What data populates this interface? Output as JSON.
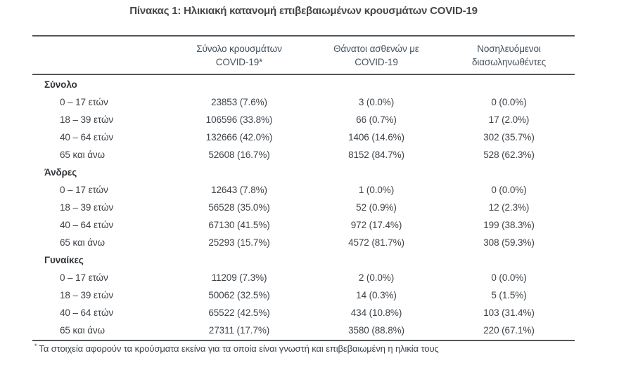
{
  "title": "Πίνακας 1: Ηλικιακή κατανομή επιβεβαιωμένων κρουσμάτων COVID-19",
  "table": {
    "columns": [
      {
        "line1": "Σύνολο κρουσμάτων",
        "line2": "COVID-19*"
      },
      {
        "line1": "Θάνατοι ασθενών με",
        "line2": "COVID-19"
      },
      {
        "line1": "Νοσηλευόμενοι",
        "line2": "διασωληνωθέντες"
      }
    ],
    "sections": [
      {
        "label": "Σύνολο",
        "rows": [
          {
            "label": "0 – 17 ετών",
            "cells": [
              "23853 (7.6%)",
              "3 (0.0%)",
              "0 (0.0%)"
            ]
          },
          {
            "label": "18 – 39 ετών",
            "cells": [
              "106596 (33.8%)",
              "66 (0.7%)",
              "17 (2.0%)"
            ]
          },
          {
            "label": "40 – 64 ετών",
            "cells": [
              "132666 (42.0%)",
              "1406 (14.6%)",
              "302 (35.7%)"
            ]
          },
          {
            "label": "65 και άνω",
            "cells": [
              "52608 (16.7%)",
              "8152 (84.7%)",
              "528 (62.3%)"
            ]
          }
        ]
      },
      {
        "label": "Άνδρες",
        "rows": [
          {
            "label": "0 – 17 ετών",
            "cells": [
              "12643 (7.8%)",
              "1 (0.0%)",
              "0 (0.0%)"
            ]
          },
          {
            "label": "18 – 39 ετών",
            "cells": [
              "56528 (35.0%)",
              "52 (0.9%)",
              "12 (2.3%)"
            ]
          },
          {
            "label": "40 – 64 ετών",
            "cells": [
              "67130 (41.5%)",
              "972 (17.4%)",
              "199 (38.3%)"
            ]
          },
          {
            "label": "65 και άνω",
            "cells": [
              "25293 (15.7%)",
              "4572 (81.7%)",
              "308 (59.3%)"
            ]
          }
        ]
      },
      {
        "label": "Γυναίκες",
        "rows": [
          {
            "label": "0 – 17 ετών",
            "cells": [
              "11209 (7.3%)",
              "2 (0.0%)",
              "0 (0.0%)"
            ]
          },
          {
            "label": "18 – 39 ετών",
            "cells": [
              "50062 (32.5%)",
              "14 (0.3%)",
              "5 (1.5%)"
            ]
          },
          {
            "label": "40 – 64 ετών",
            "cells": [
              "65522 (42.5%)",
              "434 (10.8%)",
              "103 (31.4%)"
            ]
          },
          {
            "label": "65 και άνω",
            "cells": [
              "27311 (17.7%)",
              "3580 (88.8%)",
              "220 (67.1%)"
            ]
          }
        ]
      }
    ]
  },
  "footnote": {
    "marker": "*",
    "text": "Τα στοιχεία αφορούν τα κρούσματα εκείνα για τα οποία είναι γνωστή και επιβεβαιωμένη η ηλικία τους"
  },
  "colors": {
    "rule": "#54565a",
    "body_text": "#3e444a",
    "header_text": "#44525e",
    "title_text": "#45474a"
  }
}
